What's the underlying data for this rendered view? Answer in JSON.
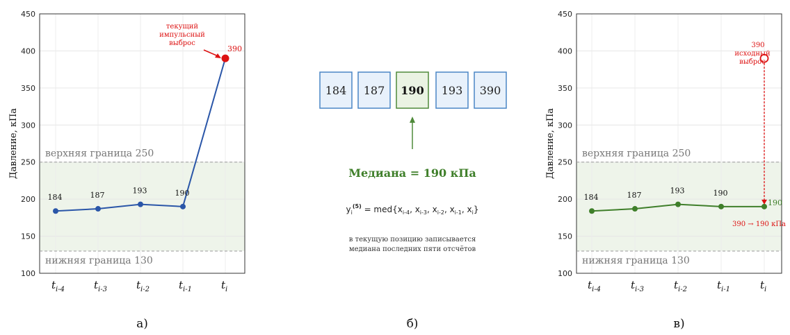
{
  "chart_data": [
    {
      "type": "line",
      "panel_label": "а)",
      "ylabel": "Давление, кПа",
      "ylim": [
        100,
        450
      ],
      "yticks": [
        "100",
        "150",
        "200",
        "250",
        "300",
        "350",
        "400",
        "450"
      ],
      "xtick_labels": [
        {
          "base": "t",
          "sub": "i-4"
        },
        {
          "base": "t",
          "sub": "i-3"
        },
        {
          "base": "t",
          "sub": "i-2"
        },
        {
          "base": "t",
          "sub": "i-1"
        },
        {
          "base": "t",
          "sub": "i"
        }
      ],
      "values": [
        184,
        187,
        193,
        190,
        390
      ],
      "point_labels": [
        "184",
        "187",
        "193",
        "190",
        "390"
      ],
      "upper_bound": {
        "value": 250,
        "label": "верхняя граница 250"
      },
      "lower_bound": {
        "value": 130,
        "label": "нижняя граница 130"
      },
      "annotation": [
        "текущий",
        "импульсный",
        "выброс"
      ],
      "grid": true,
      "colors": {
        "line": "#2a56a8",
        "outlier": "#dd1111",
        "band": "#eef4ea"
      }
    },
    {
      "type": "diagram",
      "panel_label": "б)",
      "window_values": [
        "184",
        "187",
        "190",
        "193",
        "390"
      ],
      "median_index": 2,
      "median_label": "Медиана = 190 кПа",
      "formula": {
        "lhs": "y",
        "lhs_sub": "i",
        "lhs_sup": "(5)",
        "rhs": "= med{x",
        "args": [
          "i-4",
          "i-3",
          "i-2",
          "i-1",
          "i"
        ]
      },
      "note": [
        "в текущую позицию записывается",
        "медиана последних пяти отсчётов"
      ],
      "colors": {
        "box_fill": "#e8f1fb",
        "box_stroke": "#4a86c5",
        "median_fill": "#eaf3e3",
        "median_stroke": "#4f8a3a"
      }
    },
    {
      "type": "line",
      "panel_label": "в)",
      "ylabel": "Давление, кПа",
      "ylim": [
        100,
        450
      ],
      "yticks": [
        "100",
        "150",
        "200",
        "250",
        "300",
        "350",
        "400",
        "450"
      ],
      "xtick_labels": [
        {
          "base": "t",
          "sub": "i-4"
        },
        {
          "base": "t",
          "sub": "i-3"
        },
        {
          "base": "t",
          "sub": "i-2"
        },
        {
          "base": "t",
          "sub": "i-1"
        },
        {
          "base": "t",
          "sub": "i"
        }
      ],
      "values": [
        184,
        187,
        193,
        190,
        190
      ],
      "point_labels": [
        "184",
        "187",
        "193",
        "190",
        "190"
      ],
      "outlier": {
        "value": 390,
        "label": "390",
        "annotation": [
          "исходный",
          "выброс"
        ]
      },
      "correction_label": "390 → 190 кПа",
      "upper_bound": {
        "value": 250,
        "label": "верхняя граница 250"
      },
      "lower_bound": {
        "value": 130,
        "label": "нижняя граница 130"
      },
      "grid": true,
      "colors": {
        "line": "#3f7f2a",
        "outlier": "#dd1111",
        "band": "#eef4ea"
      }
    }
  ]
}
